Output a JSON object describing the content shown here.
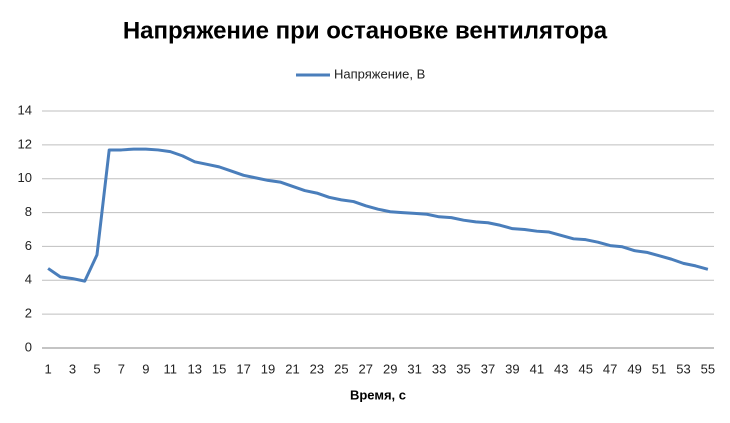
{
  "chart_data": {
    "type": "line",
    "title": "Напряжение при остановке вентилятора",
    "x_label": "Время, с",
    "categories": [
      "1",
      null,
      "3",
      null,
      "5",
      null,
      "7",
      null,
      "9",
      null,
      "11",
      null,
      "13",
      null,
      "15",
      null,
      "17",
      null,
      "19",
      null,
      "21",
      null,
      "23",
      null,
      "25",
      null,
      "27",
      null,
      "29",
      null,
      "31",
      null,
      "33",
      null,
      "35",
      null,
      "37",
      null,
      "39",
      null,
      "41",
      null,
      "43",
      null,
      "45",
      null,
      "47",
      null,
      "49",
      null,
      "51",
      null,
      "53",
      null,
      "55"
    ],
    "series": [
      {
        "name": "Напряжение, В",
        "color": "#4a7ebb",
        "values": [
          4.7,
          4.2,
          4.1,
          3.95,
          5.5,
          11.7,
          11.7,
          11.75,
          11.75,
          11.7,
          11.6,
          11.35,
          11.0,
          10.85,
          10.7,
          10.45,
          10.2,
          10.05,
          9.9,
          9.8,
          9.55,
          9.3,
          9.15,
          8.9,
          8.75,
          8.65,
          8.4,
          8.2,
          8.05,
          8.0,
          7.95,
          7.9,
          7.75,
          7.7,
          7.55,
          7.45,
          7.4,
          7.25,
          7.05,
          7.0,
          6.9,
          6.85,
          6.65,
          6.45,
          6.4,
          6.25,
          6.05,
          5.98,
          5.75,
          5.65,
          5.45,
          5.25,
          5.0,
          4.85,
          4.65
        ]
      }
    ],
    "ylim": [
      0,
      14
    ],
    "yticks": [
      0,
      2,
      4,
      6,
      8,
      10,
      12,
      14
    ],
    "grid": true,
    "legend": "top"
  }
}
